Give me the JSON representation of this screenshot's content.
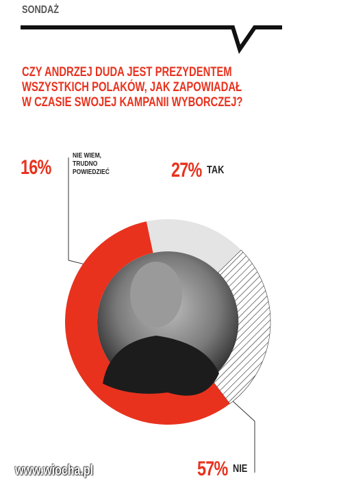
{
  "header": {
    "label": "SONDAŻ"
  },
  "chart_data": {
    "type": "donut",
    "title": [
      "CZY ANDRZEJ DUDA JEST PREZYDENTEM",
      "WSZYSTKICH POLAKÓW, JAK ZAPOWIADAŁ",
      "W CZASIE SWOJEJ KAMPANII WYBORCZEJ?"
    ],
    "categories": [
      "NIE WIEM,\nTRUDNO\nPOWIEDZIEĆ",
      "TAK",
      "NIE"
    ],
    "values": [
      16,
      27,
      57
    ],
    "value_labels": [
      "16%",
      "27%",
      "57%"
    ],
    "colors": [
      "#e4e4e4",
      "#ffffff",
      "#e8321e"
    ],
    "hatched": [
      false,
      true,
      false
    ]
  },
  "watermark": "www.wiocha.pl"
}
